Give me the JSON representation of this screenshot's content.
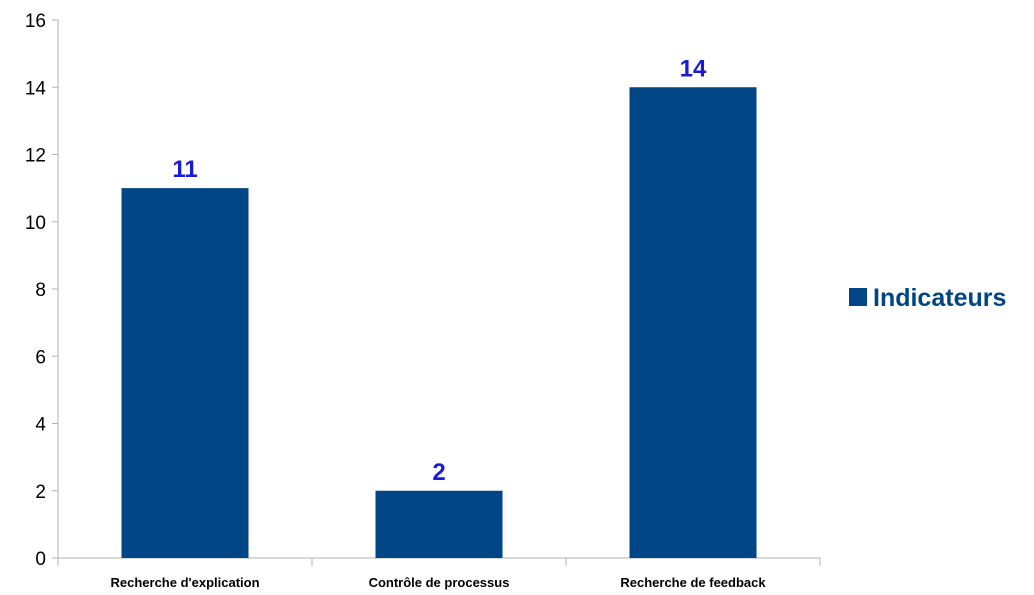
{
  "chart_data": {
    "type": "bar",
    "categories": [
      "Recherche d'explication",
      "Contrôle de processus",
      "Recherche de feedback"
    ],
    "series": [
      {
        "name": "Indicateurs",
        "values": [
          11,
          2,
          14
        ]
      }
    ],
    "data_labels": [
      "11",
      "2",
      "14"
    ],
    "y_ticks": [
      "0",
      "2",
      "4",
      "6",
      "8",
      "10",
      "12",
      "14",
      "16"
    ],
    "ylim": [
      0,
      16
    ],
    "grid": false,
    "legend_position": "right",
    "colors": {
      "bar": "#004586",
      "data_label": "#1a1adc",
      "legend_text": "#004586",
      "axis": "#b3b3b3"
    }
  }
}
